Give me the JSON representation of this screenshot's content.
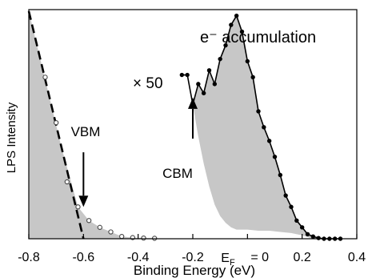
{
  "chart_data": {
    "type": "line",
    "title": "",
    "xlabel": "Binding Energy (eV)",
    "ylabel": "LPS Intensity",
    "xlim": [
      -0.8,
      0.4
    ],
    "ylim": [
      0,
      1
    ],
    "x_axis_reversed": false,
    "grid": false,
    "legend": "none",
    "x_ticks": [
      {
        "value": -0.8,
        "label": "-0.8"
      },
      {
        "value": -0.6,
        "label": "-0.6"
      },
      {
        "value": -0.4,
        "label": "-0.4"
      },
      {
        "value": -0.2,
        "label": "-0.2"
      },
      {
        "value": 0.0,
        "label": "= 0"
      },
      {
        "value": 0.2,
        "label": "0.2"
      },
      {
        "value": 0.4,
        "label": "0.4"
      }
    ],
    "ef_label": {
      "base": "E",
      "sub": "F"
    },
    "series": [
      {
        "style": "open-circles",
        "x": [
          -0.74,
          -0.7,
          -0.66,
          -0.62,
          -0.58,
          -0.54,
          -0.5,
          -0.46,
          -0.42,
          -0.38,
          -0.34
        ],
        "y": [
          0.71,
          0.51,
          0.25,
          0.14,
          0.08,
          0.05,
          0.03,
          0.01,
          0.005,
          0.003,
          0.002
        ]
      },
      {
        "style": "line-dots",
        "scale_label": "× 50",
        "x": [
          -0.24,
          -0.22,
          -0.2,
          -0.18,
          -0.16,
          -0.14,
          -0.12,
          -0.1,
          -0.08,
          -0.06,
          -0.04,
          -0.02,
          0.0,
          0.02,
          0.04,
          0.06,
          0.08,
          0.1,
          0.12,
          0.14,
          0.16,
          0.18,
          0.2,
          0.22,
          0.24,
          0.26,
          0.28,
          0.3,
          0.32,
          0.34
        ],
        "y": [
          0.72,
          0.72,
          0.59,
          0.68,
          0.64,
          0.74,
          0.68,
          0.79,
          0.85,
          0.94,
          0.98,
          0.91,
          0.78,
          0.71,
          0.56,
          0.49,
          0.43,
          0.36,
          0.28,
          0.19,
          0.14,
          0.08,
          0.05,
          0.02,
          0.01,
          0.003,
          0.0,
          0.0,
          0.0,
          0.0
        ]
      }
    ],
    "fit_line": {
      "style": "dashed",
      "x": [
        -0.8,
        -0.6
      ],
      "y": [
        1.0,
        0.0
      ]
    },
    "shaded_background": {
      "x": [
        -0.2,
        -0.18,
        -0.16,
        -0.14,
        -0.12,
        -0.1,
        -0.08,
        -0.06,
        -0.04,
        -0.02,
        0.0,
        0.04,
        0.08,
        0.12,
        0.16,
        0.2,
        0.24
      ],
      "y": [
        0.59,
        0.45,
        0.33,
        0.23,
        0.15,
        0.1,
        0.07,
        0.05,
        0.04,
        0.04,
        0.04,
        0.035,
        0.035,
        0.03,
        0.025,
        0.015,
        0.0
      ]
    },
    "annotations": [
      {
        "text": "VBM",
        "x": -0.6,
        "y_text": 0.48,
        "arrow_from": 0.38,
        "arrow_to": 0.14
      },
      {
        "text": "CBM",
        "x": -0.2,
        "y_text": 0.34,
        "arrow_from": 0.44,
        "arrow_to": 0.62
      },
      {
        "text": "e⁻ accumulation"
      }
    ]
  }
}
